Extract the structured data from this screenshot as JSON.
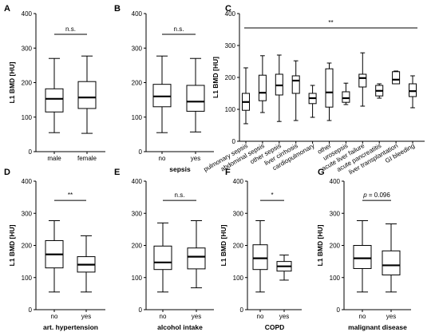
{
  "chart_data": [
    {
      "panel": "A",
      "type": "box",
      "ylabel": "L1 BMD [HU]",
      "xlabel": "",
      "ylim": [
        0,
        400
      ],
      "yticks": [
        0,
        100,
        200,
        300,
        400
      ],
      "categories": [
        "male",
        "female"
      ],
      "boxes": [
        {
          "min": 55,
          "q1": 115,
          "median": 153,
          "q3": 182,
          "max": 270
        },
        {
          "min": 53,
          "q1": 125,
          "median": 157,
          "q3": 203,
          "max": 277
        }
      ],
      "significance": "n.s."
    },
    {
      "panel": "B",
      "type": "box",
      "ylabel": "",
      "xlabel": "sepsis",
      "ylim": [
        0,
        400
      ],
      "yticks": [
        0,
        100,
        200,
        300,
        400
      ],
      "categories": [
        "no",
        "yes"
      ],
      "boxes": [
        {
          "min": 55,
          "q1": 130,
          "median": 160,
          "q3": 195,
          "max": 277
        },
        {
          "min": 57,
          "q1": 117,
          "median": 145,
          "q3": 192,
          "max": 270
        }
      ],
      "significance": "n.s."
    },
    {
      "panel": "C",
      "type": "box",
      "ylabel": "L1 BMD [HU]",
      "xlabel": "",
      "ylim": [
        0,
        400
      ],
      "yticks": [
        0,
        100,
        200,
        300,
        400
      ],
      "categories": [
        "pulmonary sepsis",
        "abdominal sepsis",
        "other sepsis",
        "liver cirrhosis",
        "cardiopulmonary",
        "other",
        "urosepsis",
        "acute liver failure",
        "acute pancreatitis",
        "liver transplantation",
        "GI bleeding"
      ],
      "boxes": [
        {
          "min": 55,
          "q1": 97,
          "median": 123,
          "q3": 150,
          "max": 230
        },
        {
          "min": 90,
          "q1": 127,
          "median": 152,
          "q3": 207,
          "max": 268
        },
        {
          "min": 62,
          "q1": 145,
          "median": 175,
          "q3": 210,
          "max": 270
        },
        {
          "min": 65,
          "q1": 150,
          "median": 190,
          "q3": 205,
          "max": 252
        },
        {
          "min": 75,
          "q1": 118,
          "median": 135,
          "q3": 150,
          "max": 175
        },
        {
          "min": 65,
          "q1": 107,
          "median": 153,
          "q3": 227,
          "max": 245
        },
        {
          "min": 115,
          "q1": 122,
          "median": 135,
          "q3": 155,
          "max": 182
        },
        {
          "min": 110,
          "q1": 170,
          "median": 198,
          "q3": 210,
          "max": 277
        },
        {
          "min": 135,
          "q1": 142,
          "median": 158,
          "q3": 175,
          "max": 180
        },
        {
          "min": 180,
          "q1": 180,
          "median": 193,
          "q3": 218,
          "max": 220
        },
        {
          "min": 105,
          "q1": 140,
          "median": 157,
          "q3": 180,
          "max": 205
        }
      ],
      "significance": "**"
    },
    {
      "panel": "D",
      "type": "box",
      "ylabel": "L1 BMD [HU]",
      "xlabel": "art. hypertension",
      "ylim": [
        0,
        400
      ],
      "yticks": [
        0,
        100,
        200,
        300,
        400
      ],
      "categories": [
        "no",
        "yes"
      ],
      "boxes": [
        {
          "min": 55,
          "q1": 130,
          "median": 172,
          "q3": 215,
          "max": 277
        },
        {
          "min": 55,
          "q1": 117,
          "median": 140,
          "q3": 165,
          "max": 230
        }
      ],
      "significance": "**"
    },
    {
      "panel": "E",
      "type": "box",
      "ylabel": "",
      "xlabel": "alcohol intake",
      "ylim": [
        0,
        400
      ],
      "yticks": [
        0,
        100,
        200,
        300,
        400
      ],
      "categories": [
        "no",
        "yes"
      ],
      "boxes": [
        {
          "min": 55,
          "q1": 125,
          "median": 147,
          "q3": 198,
          "max": 270
        },
        {
          "min": 68,
          "q1": 127,
          "median": 165,
          "q3": 192,
          "max": 277
        }
      ],
      "significance": "n.s."
    },
    {
      "panel": "F",
      "type": "box",
      "ylabel": "L1 BMD [HU]",
      "xlabel": "COPD",
      "ylim": [
        0,
        400
      ],
      "yticks": [
        0,
        100,
        200,
        300,
        400
      ],
      "categories": [
        "no",
        "yes"
      ],
      "boxes": [
        {
          "min": 55,
          "q1": 125,
          "median": 160,
          "q3": 202,
          "max": 277
        },
        {
          "min": 92,
          "q1": 120,
          "median": 135,
          "q3": 150,
          "max": 170
        }
      ],
      "significance": "*"
    },
    {
      "panel": "G",
      "type": "box",
      "ylabel": "L1 BMD [HU]",
      "xlabel": "malignant disease",
      "ylim": [
        0,
        400
      ],
      "yticks": [
        0,
        100,
        200,
        300,
        400
      ],
      "categories": [
        "no",
        "yes"
      ],
      "boxes": [
        {
          "min": 55,
          "q1": 128,
          "median": 160,
          "q3": 200,
          "max": 277
        },
        {
          "min": 55,
          "q1": 108,
          "median": 138,
          "q3": 183,
          "max": 267
        }
      ],
      "significance": "p = 0.096"
    }
  ]
}
